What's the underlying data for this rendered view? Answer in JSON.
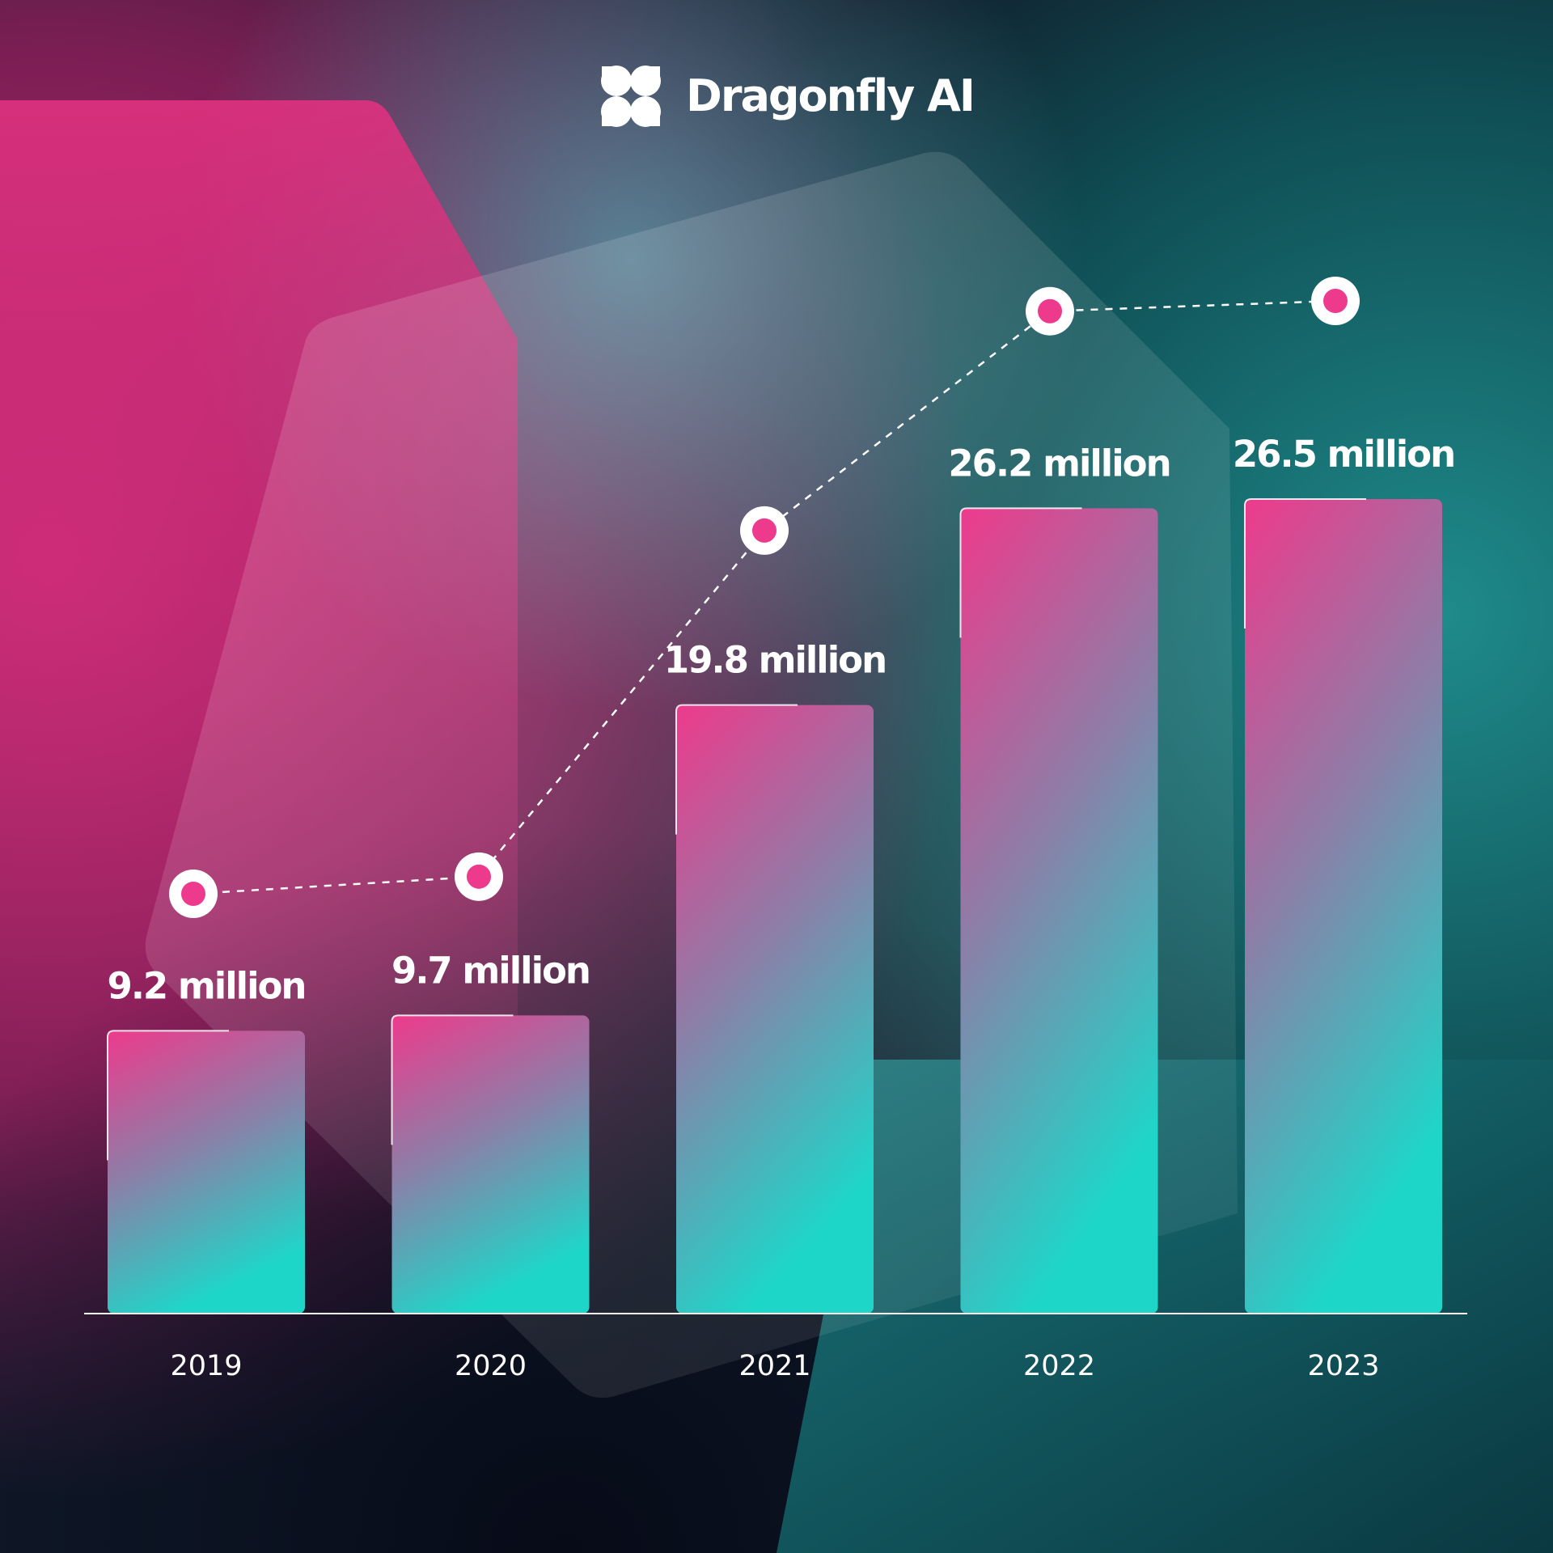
{
  "brand": {
    "name": "Dragonfly AI",
    "logo_icon": "four-petal-logo-icon"
  },
  "colors": {
    "bar_top": "#ee3a8c",
    "bar_bottom": "#1ed6c8",
    "marker_fill": "#ee3a8c",
    "text": "#ffffff",
    "bg_magenta": "#b0256a",
    "bg_teal": "#1a7c80",
    "bg_dark": "#030d16"
  },
  "chart_data": {
    "type": "bar",
    "categories": [
      "2019",
      "2020",
      "2021",
      "2022",
      "2023"
    ],
    "values": [
      9.2,
      9.7,
      19.8,
      26.2,
      26.5
    ],
    "value_labels": [
      "9.2 million",
      "9.7 million",
      "19.8 million",
      "26.2 million",
      "26.5 million"
    ],
    "unit": "million",
    "overlay_line": {
      "style": "dashed",
      "marker": "ring",
      "values": [
        9.2,
        9.7,
        19.8,
        26.2,
        26.5
      ]
    },
    "title": "",
    "xlabel": "",
    "ylabel": "",
    "ylim": [
      0,
      30
    ],
    "grid": false,
    "legend": "none"
  }
}
